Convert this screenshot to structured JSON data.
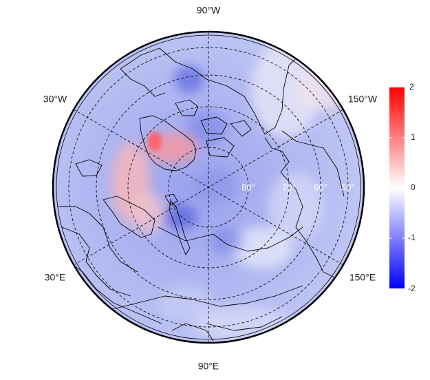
{
  "map": {
    "projection": "polar-stereographic-north",
    "longitude_labels": {
      "top": "90°W",
      "upper_left": "30°W",
      "upper_right": "150°W",
      "lower_left": "30°E",
      "lower_right": "150°E",
      "bottom": "90°E"
    },
    "latitude_labels": [
      "80°",
      "70°",
      "60°",
      "50°"
    ],
    "colorbar": {
      "ticks": [
        "2",
        "1",
        "0",
        "-1",
        "-2"
      ],
      "min": -2,
      "max": 2,
      "colors": {
        "max": "#ff0000",
        "mid": "#ffffff",
        "min": "#0000ff"
      }
    },
    "colors": {
      "base_field": "#aab2f0",
      "boundary": "#000000"
    }
  }
}
